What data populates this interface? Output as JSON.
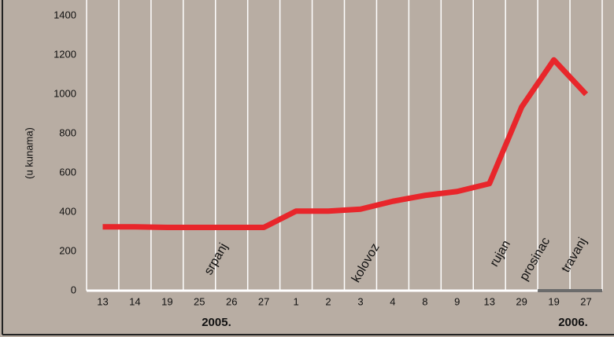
{
  "chart_data": {
    "type": "line",
    "y_label": "(u kunama)",
    "categories": [
      "13",
      "14",
      "19",
      "25",
      "26",
      "27",
      "1",
      "2",
      "3",
      "4",
      "8",
      "9",
      "13",
      "29",
      "19",
      "27"
    ],
    "series": [
      {
        "color": "#e8262b",
        "values": [
          325,
          325,
          322,
          322,
          322,
          322,
          405,
          405,
          415,
          455,
          485,
          505,
          545,
          935,
          1175,
          1000
        ]
      }
    ],
    "ylim": [
      0,
      1400
    ],
    "yticks": [
      0,
      200,
      400,
      600,
      800,
      1000,
      1200,
      1400
    ],
    "annotations": [
      "srpanj",
      "kolovoz",
      "rujan",
      "prosinac",
      "travanj"
    ],
    "years": [
      "2005.",
      "2006."
    ]
  }
}
